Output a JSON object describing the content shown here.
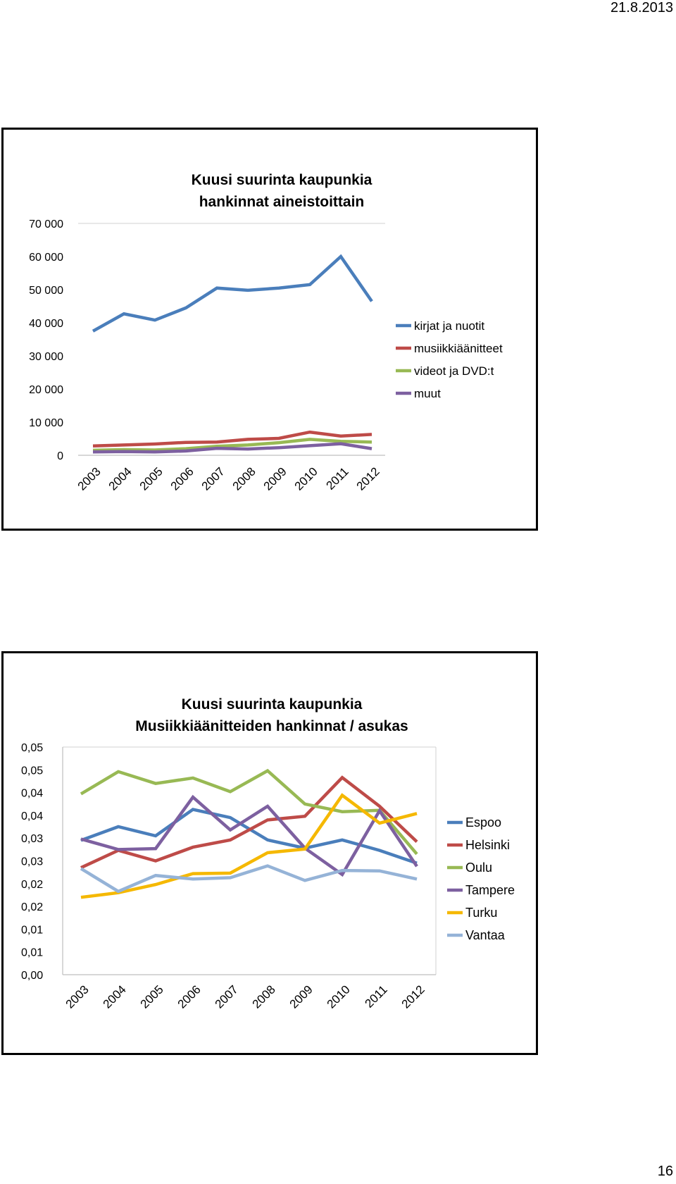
{
  "header": {
    "date": "21.8.2013"
  },
  "footer": {
    "page_number": "16"
  },
  "chart_data": [
    {
      "type": "line",
      "title_lines": [
        "Kuusi suurinta kaupunkia",
        "hankinnat aineistoittain"
      ],
      "x": [
        "2003",
        "2004",
        "2005",
        "2006",
        "2007",
        "2008",
        "2009",
        "2010",
        "2011",
        "2012"
      ],
      "y_ticks": [
        "0",
        "10 000",
        "20 000",
        "30 000",
        "40 000",
        "50 000",
        "60 000",
        "70 000"
      ],
      "ylim": [
        0,
        70000
      ],
      "grid": false,
      "legend_position": "right",
      "series": [
        {
          "name": "kirjat ja nuotit",
          "color": "#4a7ebb",
          "values": [
            37500,
            42700,
            40800,
            44500,
            50500,
            49800,
            50500,
            51500,
            60000,
            46500
          ]
        },
        {
          "name": "musiikkiäänitteet",
          "color": "#be4b48",
          "values": [
            2800,
            3100,
            3400,
            3900,
            4000,
            4800,
            5100,
            7000,
            5800,
            6300
          ]
        },
        {
          "name": "videot ja DVD:t",
          "color": "#98b954",
          "values": [
            1500,
            1700,
            1600,
            2000,
            2700,
            3100,
            3800,
            4800,
            4200,
            4000
          ]
        },
        {
          "name": "muut",
          "color": "#7d60a0",
          "values": [
            1000,
            1100,
            1000,
            1300,
            2100,
            1900,
            2300,
            2900,
            3500,
            2000
          ]
        }
      ]
    },
    {
      "type": "line",
      "title_lines": [
        "Kuusi suurinta kaupunkia",
        "Musiikkiäänitteiden hankinnat / asukas"
      ],
      "x": [
        "2003",
        "2004",
        "2005",
        "2006",
        "2007",
        "2008",
        "2009",
        "2010",
        "2011",
        "2012"
      ],
      "y_ticks": [
        "0,00",
        "0,01",
        "0,01",
        "0,02",
        "0,02",
        "0,03",
        "0,03",
        "0,04",
        "0,04",
        "0,05",
        "0,05"
      ],
      "ylim": [
        0,
        0.05
      ],
      "grid": false,
      "legend_position": "right",
      "series": [
        {
          "name": "Espoo",
          "color": "#4a7ebb",
          "values": [
            0.0295,
            0.0325,
            0.0305,
            0.0363,
            0.0345,
            0.0296,
            0.0278,
            0.0296,
            0.0273,
            0.0245
          ]
        },
        {
          "name": "Helsinki",
          "color": "#be4b48",
          "values": [
            0.0235,
            0.0273,
            0.025,
            0.028,
            0.0296,
            0.034,
            0.0348,
            0.0433,
            0.037,
            0.0292
          ]
        },
        {
          "name": "Oulu",
          "color": "#98b954",
          "values": [
            0.0397,
            0.0446,
            0.042,
            0.0432,
            0.0402,
            0.0448,
            0.0375,
            0.0358,
            0.0361,
            0.0265
          ]
        },
        {
          "name": "Tampere",
          "color": "#7d60a0",
          "values": [
            0.0298,
            0.0275,
            0.0277,
            0.039,
            0.0318,
            0.037,
            0.0278,
            0.022,
            0.036,
            0.0238
          ]
        },
        {
          "name": "Turku",
          "color": "#f5b800",
          "values": [
            0.017,
            0.018,
            0.0198,
            0.0222,
            0.0223,
            0.0268,
            0.0276,
            0.0394,
            0.0333,
            0.0354
          ]
        },
        {
          "name": "Vantaa",
          "color": "#95b3d7",
          "values": [
            0.0233,
            0.0183,
            0.0218,
            0.021,
            0.0213,
            0.0239,
            0.0207,
            0.0229,
            0.0228,
            0.021
          ]
        }
      ]
    }
  ]
}
